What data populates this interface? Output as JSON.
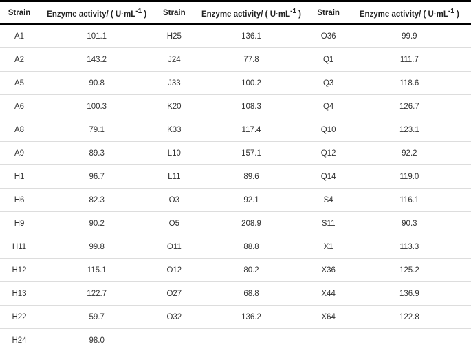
{
  "header": {
    "strain": "Strain",
    "activity_prefix": "Enzyme activity/ ( U·mL",
    "activity_sup": "-1",
    "activity_suffix": " )"
  },
  "rows": [
    [
      "A1",
      "101.1",
      "H25",
      "136.1",
      "O36",
      "99.9"
    ],
    [
      "A2",
      "143.2",
      "J24",
      "77.8",
      "Q1",
      "111.7"
    ],
    [
      "A5",
      "90.8",
      "J33",
      "100.2",
      "Q3",
      "118.6"
    ],
    [
      "A6",
      "100.3",
      "K20",
      "108.3",
      "Q4",
      "126.7"
    ],
    [
      "A8",
      "79.1",
      "K33",
      "117.4",
      "Q10",
      "123.1"
    ],
    [
      "A9",
      "89.3",
      "L10",
      "157.1",
      "Q12",
      "92.2"
    ],
    [
      "H1",
      "96.7",
      "L11",
      "89.6",
      "Q14",
      "119.0"
    ],
    [
      "H6",
      "82.3",
      "O3",
      "92.1",
      "S4",
      "116.1"
    ],
    [
      "H9",
      "90.2",
      "O5",
      "208.9",
      "S11",
      "90.3"
    ],
    [
      "H11",
      "99.8",
      "O11",
      "88.8",
      "X1",
      "113.3"
    ],
    [
      "H12",
      "115.1",
      "O12",
      "80.2",
      "X36",
      "125.2"
    ],
    [
      "H13",
      "122.7",
      "O27",
      "68.8",
      "X44",
      "136.9"
    ],
    [
      "H22",
      "59.7",
      "O32",
      "136.2",
      "X64",
      "122.8"
    ],
    [
      "H24",
      "98.0",
      "",
      "",
      "",
      ""
    ]
  ]
}
